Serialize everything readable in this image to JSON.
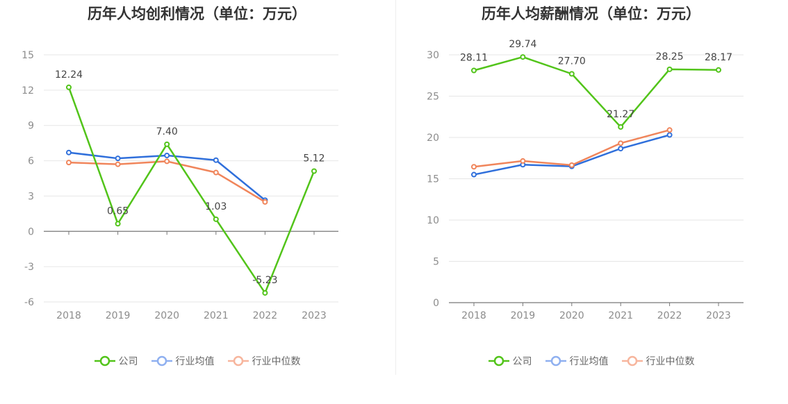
{
  "chart_data": [
    {
      "type": "line",
      "title": "历年人均创利情况（单位：万元）",
      "categories": [
        "2018",
        "2019",
        "2020",
        "2021",
        "2022",
        "2023"
      ],
      "ylim": [
        -6,
        15
      ],
      "yticks": [
        -6,
        -3,
        0,
        3,
        6,
        9,
        12,
        15
      ],
      "yticklabels": [
        "-6",
        "-3",
        "0",
        "3",
        "6",
        "9",
        "12",
        "15"
      ],
      "grid": true,
      "legend_position": "bottom",
      "series": [
        {
          "name": "公司",
          "color": "#52c41a",
          "values": [
            12.24,
            0.65,
            7.4,
            1.03,
            -5.23,
            5.12
          ],
          "labels": [
            "12.24",
            "0.65",
            "7.40",
            "1.03",
            "-5.23",
            "5.12"
          ]
        },
        {
          "name": "行业均值",
          "color": "#2f6fdb",
          "values": [
            6.7,
            6.2,
            6.45,
            6.05,
            2.65,
            null
          ]
        },
        {
          "name": "行业中位数",
          "color": "#f0855b",
          "values": [
            5.85,
            5.7,
            5.95,
            5.0,
            2.5,
            null
          ]
        }
      ]
    },
    {
      "type": "line",
      "title": "历年人均薪酬情况（单位：万元）",
      "categories": [
        "2018",
        "2019",
        "2020",
        "2021",
        "2022",
        "2023"
      ],
      "ylim": [
        0,
        30
      ],
      "yticks": [
        0,
        5,
        10,
        15,
        20,
        25,
        30
      ],
      "yticklabels": [
        "0",
        "5",
        "10",
        "15",
        "20",
        "25",
        "30"
      ],
      "grid": true,
      "legend_position": "bottom",
      "series": [
        {
          "name": "公司",
          "color": "#52c41a",
          "values": [
            28.11,
            29.74,
            27.7,
            21.27,
            28.25,
            28.17
          ],
          "labels": [
            "28.11",
            "29.74",
            "27.70",
            "21.27",
            "28.25",
            "28.17"
          ]
        },
        {
          "name": "行业均值",
          "color": "#2f6fdb",
          "values": [
            15.5,
            16.7,
            16.5,
            18.65,
            20.3,
            null
          ]
        },
        {
          "name": "行业中位数",
          "color": "#f0855b",
          "values": [
            16.45,
            17.15,
            16.65,
            19.3,
            20.9,
            null
          ]
        }
      ]
    }
  ],
  "legend_colors": {
    "company": "#52c41a",
    "avg": "#8fb0f0",
    "median": "#f7b59d"
  }
}
